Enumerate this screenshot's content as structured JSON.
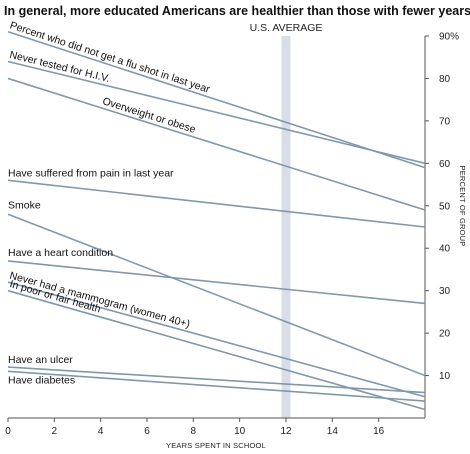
{
  "chart_data": {
    "type": "line",
    "title": "In general, more educated Americans are healthier than those with fewer years in school.",
    "xlabel": "YEARS SPENT IN SCHOOL",
    "ylabel": "PERCENT OF GROUP",
    "xlim": [
      0,
      18
    ],
    "ylim": [
      0,
      90
    ],
    "x_ticks": [
      0,
      2,
      4,
      6,
      8,
      10,
      12,
      14,
      16
    ],
    "x_tick_labels": [
      "0",
      "2",
      "4",
      "6",
      "8",
      "10",
      "12",
      "14",
      "16"
    ],
    "y_ticks": [
      10,
      20,
      30,
      40,
      50,
      60,
      70,
      80,
      90
    ],
    "y_tick_labels": [
      "10",
      "20",
      "30",
      "40",
      "50",
      "60",
      "70",
      "80",
      "90%"
    ],
    "reference": {
      "label": "U.S. AVERAGE",
      "x": 12,
      "color": "#d8dde6"
    },
    "line_color": "#7f98ae",
    "series": [
      {
        "name": "Percent who did not get a flu shot in last year",
        "x": [
          0,
          18
        ],
        "y": [
          91,
          59
        ]
      },
      {
        "name": "Never tested for H.I.V.",
        "x": [
          0,
          18
        ],
        "y": [
          84,
          60
        ]
      },
      {
        "name": "Overweight or obese",
        "x": [
          0,
          18
        ],
        "y": [
          80,
          49
        ]
      },
      {
        "name": "Have suffered from pain in last year",
        "x": [
          0,
          18
        ],
        "y": [
          56,
          45
        ]
      },
      {
        "name": "Smoke",
        "x": [
          0,
          18
        ],
        "y": [
          48,
          10
        ]
      },
      {
        "name": "Have a heart condition",
        "x": [
          0,
          18
        ],
        "y": [
          37,
          27
        ]
      },
      {
        "name": "Never had a mammogram (women 40+)",
        "x": [
          0,
          18
        ],
        "y": [
          32,
          5
        ]
      },
      {
        "name": "In poor or fair health",
        "x": [
          0,
          18
        ],
        "y": [
          30,
          2
        ]
      },
      {
        "name": "Have an ulcer",
        "x": [
          0,
          18
        ],
        "y": [
          12,
          6
        ]
      },
      {
        "name": "Have diabetes",
        "x": [
          0,
          18
        ],
        "y": [
          11,
          4
        ]
      }
    ]
  }
}
